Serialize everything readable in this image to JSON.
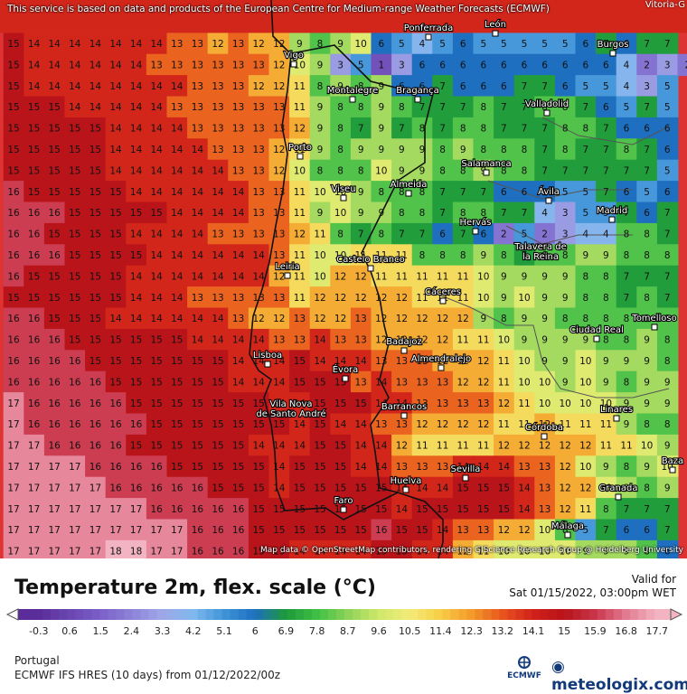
{
  "map": {
    "attribution_top": "This service is based on data and products of the European Centre for Medium-range Weather Forecasts (ECMWF)",
    "attribution_bottom": "Map data © OpenStreetMap contributors, rendering GIScience Research Group @ Heidelberg University",
    "corner_city": "Vitoria-G",
    "cities": [
      {
        "name": "Vigo"
      },
      {
        "name": "Ponferrada"
      },
      {
        "name": "León"
      },
      {
        "name": "Burgos"
      },
      {
        "name": "Montalegre"
      },
      {
        "name": "Bragança"
      },
      {
        "name": "Valladolid"
      },
      {
        "name": "Porto"
      },
      {
        "name": "Salamanca"
      },
      {
        "name": "Viseu"
      },
      {
        "name": "Almeida"
      },
      {
        "name": "Ávila"
      },
      {
        "name": "Madrid"
      },
      {
        "name": "Hervás"
      },
      {
        "name": "Talavera de la Reina"
      },
      {
        "name": "Castelo Branco"
      },
      {
        "name": "Leiria"
      },
      {
        "name": "Cáceres"
      },
      {
        "name": "Ciudad Real"
      },
      {
        "name": "Tomelloso"
      },
      {
        "name": "Badajoz"
      },
      {
        "name": "Lisboa"
      },
      {
        "name": "Almendralejo"
      },
      {
        "name": "Évora"
      },
      {
        "name": "Vila Nova de Santo André"
      },
      {
        "name": "Barrancos"
      },
      {
        "name": "Linares"
      },
      {
        "name": "Córdoba"
      },
      {
        "name": "Sevilla"
      },
      {
        "name": "Baza"
      },
      {
        "name": "Huelva"
      },
      {
        "name": "Granada"
      },
      {
        "name": "Faro"
      },
      {
        "name": "Málaga"
      }
    ],
    "temperature_grid": [
      "15 14 14 14 14 14 14 14 13 13 12 13 12 12 9 8 9 10 6 5 4 5 6 5 5 5 5 5 6 7 6 7 7",
      "15 14 14 14 14 14 14 13 13 13 13 13 13 12 10 9 3 5 1 3 6 6 6 6 6 6 6 6 6 6 4 2 3 2",
      "15 14 14 14 14 14 14 14 14 13 13 13 12 12 11 8 9 8 9 6 6 7 6 6 6 7 7 6 5 5 4 3 5",
      "15 15 15 14 14 14 14 14 13 13 13 13 13 13 11 9 8 8 9 8 7 7 7 8 7 7 8 8 7 6 5 7 5",
      "15 15 15 15 15 14 14 14 14 13 13 13 13 13 12 9 8 7 9 7 8 7 8 8 7 7 7 8 8 7 6 6 6",
      "15 15 15 15 15 14 14 14 14 14 13 13 13 12 11 9 8 9 9 9 9 8 9 8 8 8 7 8 7 7 8 7 6",
      "15 15 15 15 15 14 14 14 14 14 14 13 13 12 10 8 8 8 10 9 9 8 8 9 8 8 7 7 7 7 7 7 5",
      "16 15 15 15 15 15 14 14 14 14 14 14 13 13 11 10 10 9 8 8 8 7 7 7 6 6 6 5 5 7 6 5 6",
      "16 16 16 15 15 15 15 15 14 14 14 14 13 13 11 9 10 9 9 8 8 7 8 8 7 7 4 3 5 5 7 6 7",
      "16 16 15 15 15 15 14 14 14 14 13 13 13 13 12 11 8 7 8 7 7 6 7 6 2 5 2 3 4 4 8 8 7",
      "16 16 16 15 15 15 15 14 14 14 14 14 14 13 11 10 10 11 11 11 8 8 8 9 8 7 8 8 9 9 8 8 8",
      "16 15 15 15 15 15 14 14 14 14 14 14 14 12 11 10 12 12 11 11 11 11 11 10 9 9 9 9 8 8 7 7 7",
      "15 15 15 15 15 15 14 14 14 13 13 13 13 13 11 12 12 12 12 12 11 11 11 10 9 10 9 9 8 8 7 8 7",
      "16 16 15 15 15 14 14 14 14 14 14 13 12 12 13 12 12 13 12 12 12 12 12 9 8 9 9 8 8 8 8 8 8",
      "16 16 16 15 15 15 15 15 15 14 14 14 14 13 13 14 13 13 12 12 12 12 11 11 10 9 9 9 9 8 8 9 8",
      "16 16 16 16 15 15 15 15 15 15 15 14 14 14 15 14 14 14 13 13 13 12 12 12 11 10 9 9 10 9 9 9 8",
      "16 16 16 16 16 15 15 15 15 15 15 14 14 14 15 15 15 13 14 13 13 13 12 12 11 10 10 9 10 9 8 9 9",
      "17 16 16 16 16 16 15 15 15 15 15 15 15 14 14 15 15 15 14 14 13 13 13 13 12 11 10 10 10 10 9 9 9",
      "17 16 16 16 16 16 16 15 15 15 15 15 15 15 14 15 14 14 13 13 12 12 12 12 11 11 12 11 11 11 9 8 8",
      "17 17 16 16 16 16 15 15 15 15 15 15 14 14 14 15 15 14 14 12 11 11 11 11 12 12 12 12 12 11 11 10 9",
      "17 17 17 17 16 16 16 16 15 15 15 15 15 14 15 15 15 14 14 13 13 13 14 14 14 13 13 12 10 9 8 9 10",
      "17 17 17 17 17 16 16 16 16 16 15 15 15 14 15 15 15 15 15 14 14 14 15 15 15 14 13 12 12 10 9 8 9",
      "17 17 17 17 17 17 17 16 16 16 16 16 15 15 15 15 15 15 15 14 15 15 15 15 15 14 13 12 11 8 7 7 7",
      "17 17 17 17 17 17 17 17 17 16 16 16 15 15 15 15 15 15 16 15 15 14 13 13 12 12 10 8 5 7 6 6 7",
      "17 17 17 17 17 18 18 17 17 16 16 16 15 15 14 14 14 14 15 15 14 14 12 11 10 10 10 10 9 9 9 8 6",
      "17 17 17 17 17 18 18 17 17 17 16 16 15 15 15 14 14 14 14 14 14 15 16 15 15 14 11 10 10 11 10 9 11"
    ]
  },
  "title": "Temperature 2m, flex. scale (°C)",
  "valid_label": "Valid for",
  "valid_time": "Sat 01/15/2022, 03:00pm WET",
  "legend_ticks": [
    "-0.3",
    "0.6",
    "1.5",
    "2.4",
    "3.3",
    "4.2",
    "5.1",
    "6",
    "6.9",
    "7.8",
    "8.7",
    "9.6",
    "10.5",
    "11.4",
    "12.3",
    "13.2",
    "14.1",
    "15",
    "15.9",
    "16.8",
    "17.7"
  ],
  "region": "Portugal",
  "model_run": "ECMWF IFS HRES (10 days) from 01/12/2022/00z",
  "logos": {
    "ecmwf": "ECMWF",
    "meteologix": "meteologix.com"
  },
  "colors": {
    "cold": "#6a3fb5",
    "mid": "#3fbf45",
    "warm": "#e8d23a",
    "hot": "#c8151b",
    "hottest": "#f2a8b8"
  }
}
